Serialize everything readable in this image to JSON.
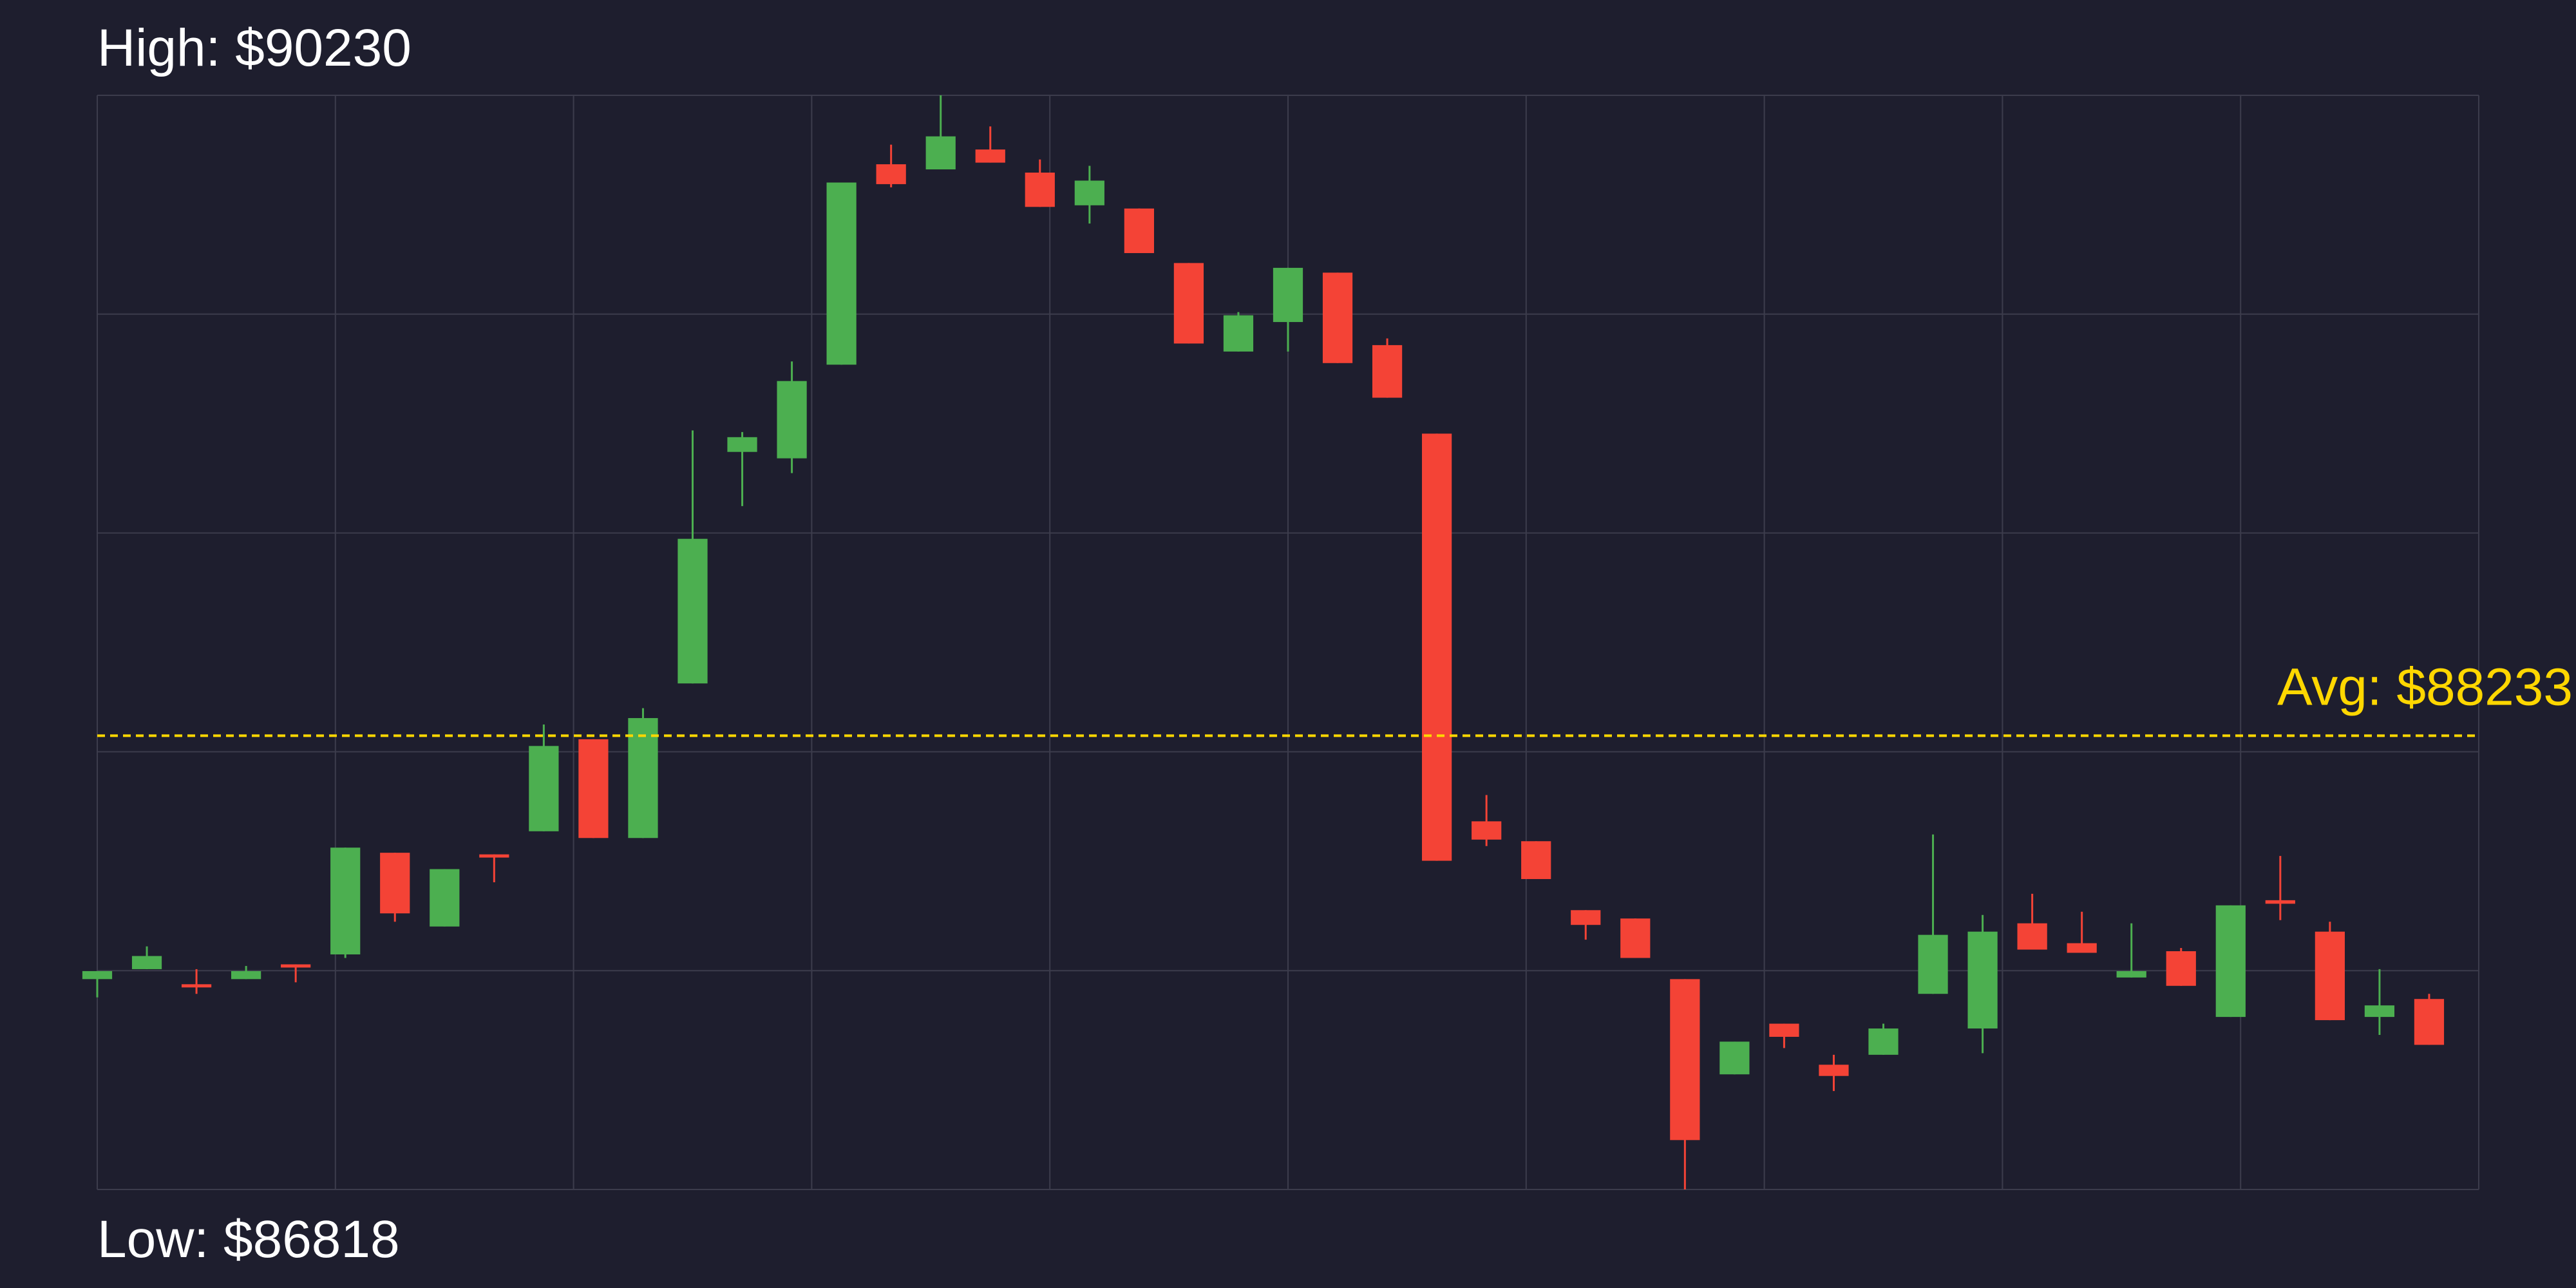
{
  "chart_data": {
    "type": "candlestick",
    "high_label": "High: $90230",
    "low_label": "Low: $86818",
    "average": {
      "value": 88233,
      "label": "Avg: $88233",
      "color": "#ffd700"
    },
    "up_color": "#4caf50",
    "down_color": "#f44336",
    "x": [
      0,
      1,
      2,
      3,
      4,
      5,
      6,
      7,
      8,
      9,
      10,
      11,
      12,
      13,
      14,
      15,
      16,
      17,
      18,
      19,
      20,
      21,
      22,
      23,
      24,
      25,
      26,
      27,
      28,
      29,
      30,
      31,
      32,
      33,
      34,
      35,
      36,
      37,
      38,
      39,
      40,
      41,
      42,
      43,
      44,
      45,
      46,
      47
    ],
    "open": [
      87474,
      87505,
      87458,
      87474,
      87520,
      87551,
      87868,
      87638,
      87863,
      87935,
      88222,
      87914,
      88396,
      89118,
      89098,
      89390,
      90015,
      89999,
      90061,
      89989,
      89887,
      89877,
      89707,
      89431,
      89523,
      89677,
      89451,
      89175,
      87966,
      87904,
      87689,
      87663,
      87474,
      87177,
      87335,
      87207,
      87238,
      87428,
      87320,
      87648,
      87586,
      87479,
      87561,
      87356,
      87720,
      87622,
      87356,
      87412
    ],
    "high": [
      87499,
      87576,
      87505,
      87515,
      87520,
      87884,
      87868,
      87817,
      87863,
      88268,
      88222,
      88319,
      89185,
      89180,
      89400,
      89958,
      90076,
      90230,
      90133,
      90030,
      90010,
      89877,
      89707,
      89554,
      89692,
      89677,
      89472,
      89175,
      88048,
      87904,
      87689,
      87663,
      87474,
      87279,
      87335,
      87238,
      87335,
      87925,
      87674,
      87740,
      87684,
      87648,
      87571,
      87704,
      87858,
      87653,
      87505,
      87428
    ],
    "low": [
      87417,
      87505,
      87428,
      87474,
      87464,
      87540,
      87653,
      87638,
      87776,
      87935,
      87914,
      87914,
      88396,
      88949,
      89052,
      89390,
      89943,
      89999,
      90020,
      89882,
      89830,
      89738,
      89456,
      89431,
      89431,
      89395,
      89287,
      87843,
      87889,
      87786,
      87597,
      87540,
      86818,
      87177,
      87259,
      87125,
      87238,
      87428,
      87243,
      87566,
      87556,
      87479,
      87453,
      87356,
      87658,
      87346,
      87300,
      87269
    ],
    "close": [
      87499,
      87546,
      87448,
      87499,
      87510,
      87884,
      87679,
      87817,
      87853,
      88201,
      87914,
      88288,
      88847,
      89164,
      89339,
      89958,
      89953,
      90102,
      90020,
      89882,
      89964,
      89738,
      89456,
      89544,
      89692,
      89395,
      89287,
      87843,
      87909,
      87786,
      87643,
      87540,
      86972,
      87279,
      87294,
      87172,
      87320,
      87612,
      87622,
      87566,
      87556,
      87499,
      87453,
      87704,
      87709,
      87346,
      87392,
      87269
    ],
    "xlim": [
      0,
      48
    ],
    "xticks": [
      0,
      4.8,
      9.6,
      14.4,
      19.2,
      24,
      28.8,
      33.6,
      38.4,
      43.2,
      48
    ],
    "ylim": [
      86818,
      90230
    ],
    "yticks": [
      86818,
      87500.4,
      88182.8,
      88865.2,
      89547.6,
      90230
    ],
    "grid": true,
    "grid_color": "#3c3c4c"
  }
}
